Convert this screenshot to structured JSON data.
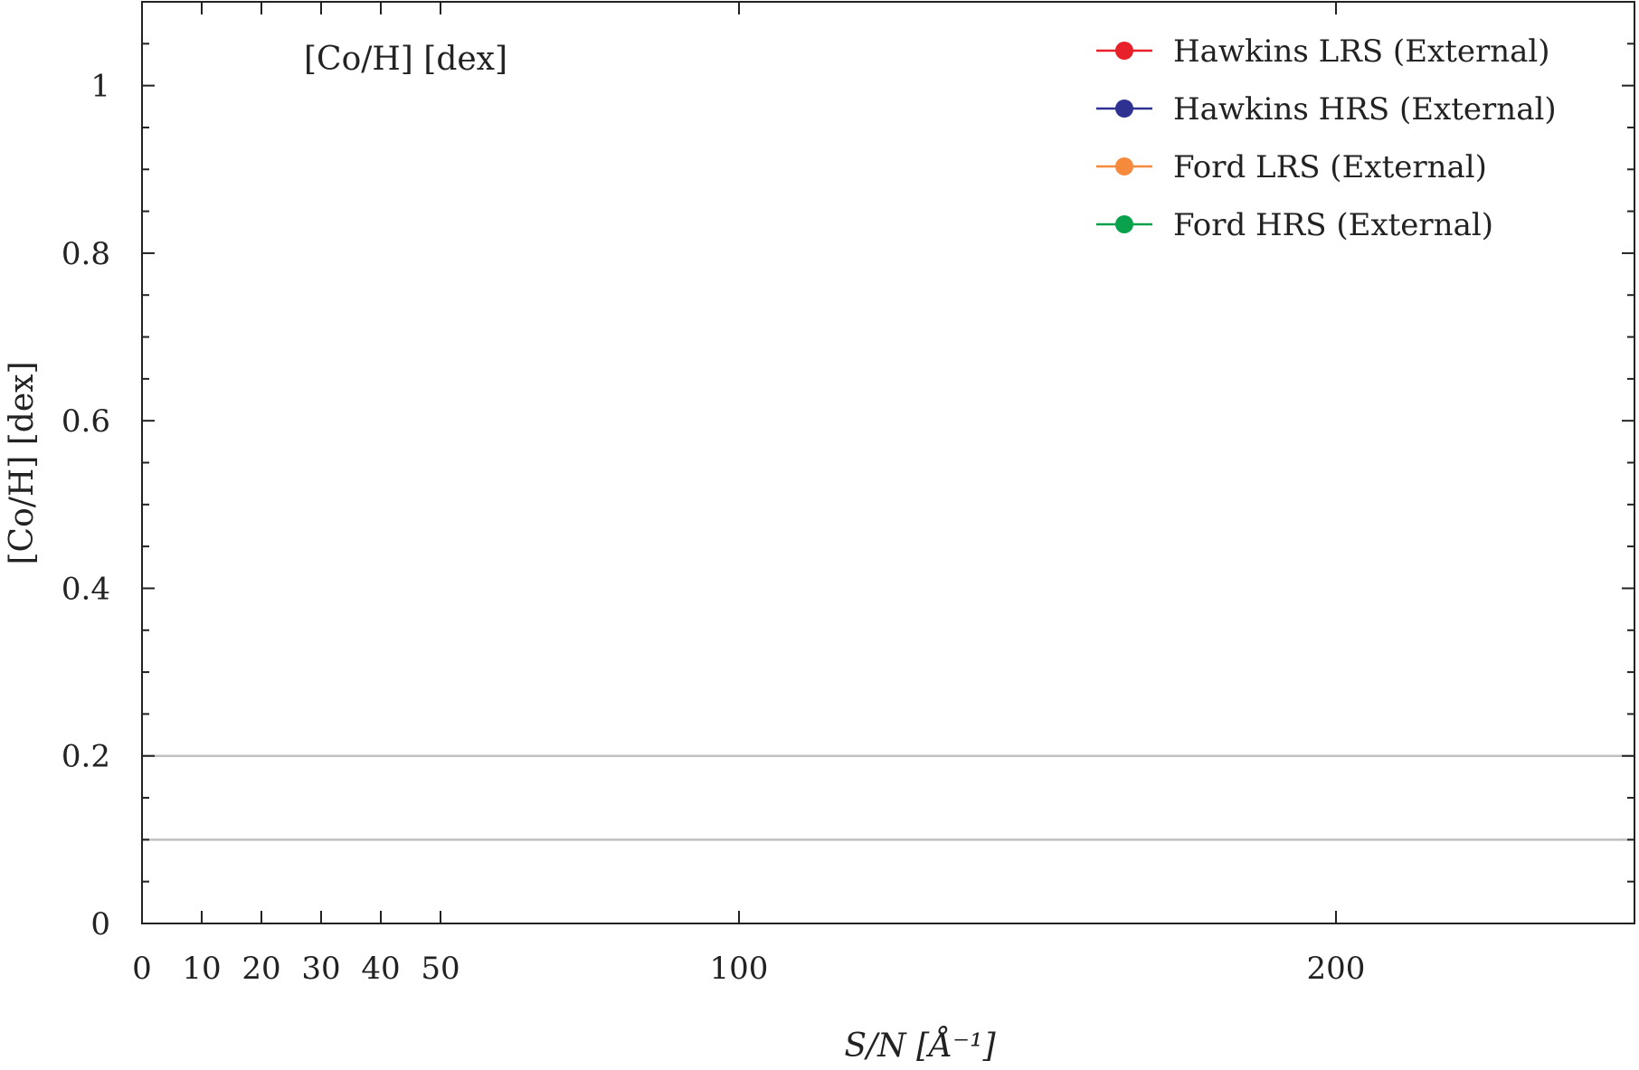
{
  "chart_data": {
    "type": "line",
    "panel_label": "[Co/H] [dex]",
    "xlabel": "S/N [Å⁻¹]",
    "ylabel": "[Co/H] [dex]",
    "xlim": [
      0,
      250
    ],
    "ylim": [
      0,
      1.1
    ],
    "x_ticks_major": [
      0,
      10,
      20,
      30,
      40,
      50,
      100,
      200
    ],
    "x_tick_labels": [
      "0",
      "10",
      "20",
      "30",
      "40",
      "50",
      "100",
      "200"
    ],
    "y_ticks_major": [
      0,
      0.2,
      0.4,
      0.6,
      0.8,
      1
    ],
    "y_tick_labels": [
      "0",
      "0.2",
      "0.4",
      "0.6",
      "0.8",
      "1"
    ],
    "y_minor_step": 0.05,
    "reference_lines": [
      0.1,
      0.2
    ],
    "reference_line_color": "#c0c0c0",
    "grid": false,
    "legend_position": "top-right",
    "series": [
      {
        "name": "Hawkins LRS (External)",
        "color": "#e8202a",
        "x": [],
        "y": []
      },
      {
        "name": "Hawkins HRS (External)",
        "color": "#2e3192",
        "x": [],
        "y": []
      },
      {
        "name": "Ford LRS (External)",
        "color": "#f58a3c",
        "x": [],
        "y": []
      },
      {
        "name": "Ford HRS (External)",
        "color": "#0aa14c",
        "x": [],
        "y": []
      }
    ]
  }
}
